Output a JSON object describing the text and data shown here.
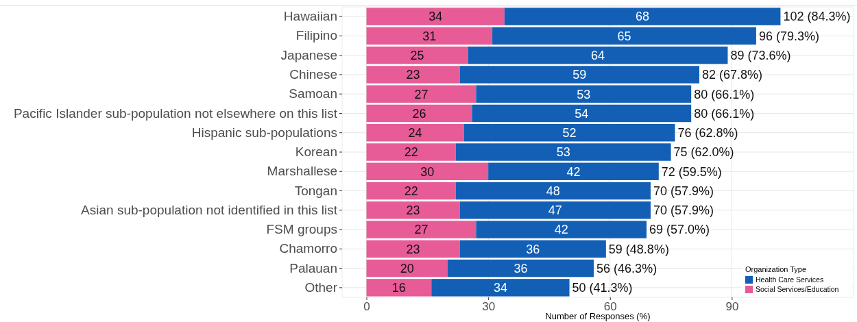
{
  "chart_data": {
    "type": "bar",
    "orientation": "horizontal",
    "stacked": true,
    "categories": [
      "Hawaiian",
      "Filipino",
      "Japanese",
      "Chinese",
      "Samoan",
      "Pacific Islander sub-population not elsewhere on this list",
      "Hispanic sub-populations",
      "Korean",
      "Marshallese",
      "Tongan",
      "Asian sub-population not identified in this list",
      "FSM groups",
      "Chamorro",
      "Palauan",
      "Other"
    ],
    "series": [
      {
        "name": "Social Services/Education",
        "color": "#e75b97",
        "values": [
          34,
          31,
          25,
          23,
          27,
          26,
          24,
          22,
          30,
          22,
          23,
          27,
          23,
          20,
          16
        ]
      },
      {
        "name": "Health Care Services",
        "color": "#135fb5",
        "values": [
          68,
          65,
          64,
          59,
          53,
          54,
          52,
          53,
          42,
          48,
          47,
          42,
          36,
          36,
          34
        ]
      }
    ],
    "totals": [
      "102 (84.3%)",
      "96 (79.3%)",
      "89 (73.6%)",
      "82 (67.8%)",
      "80 (66.1%)",
      "80 (66.1%)",
      "76 (62.8%)",
      "75 (62.0%)",
      "72 (59.5%)",
      "70 (57.9%)",
      "70 (57.9%)",
      "69 (57.0%)",
      "59 (48.8%)",
      "56 (46.3%)",
      "50 (41.3%)"
    ],
    "data_labels": true,
    "xlim": [
      -6,
      120
    ],
    "xticks": [
      0,
      30,
      60,
      90
    ],
    "xlabel": "Number of Responses (%)",
    "legend_title": "Organization Type",
    "legend": "bottom right",
    "grid": true
  }
}
